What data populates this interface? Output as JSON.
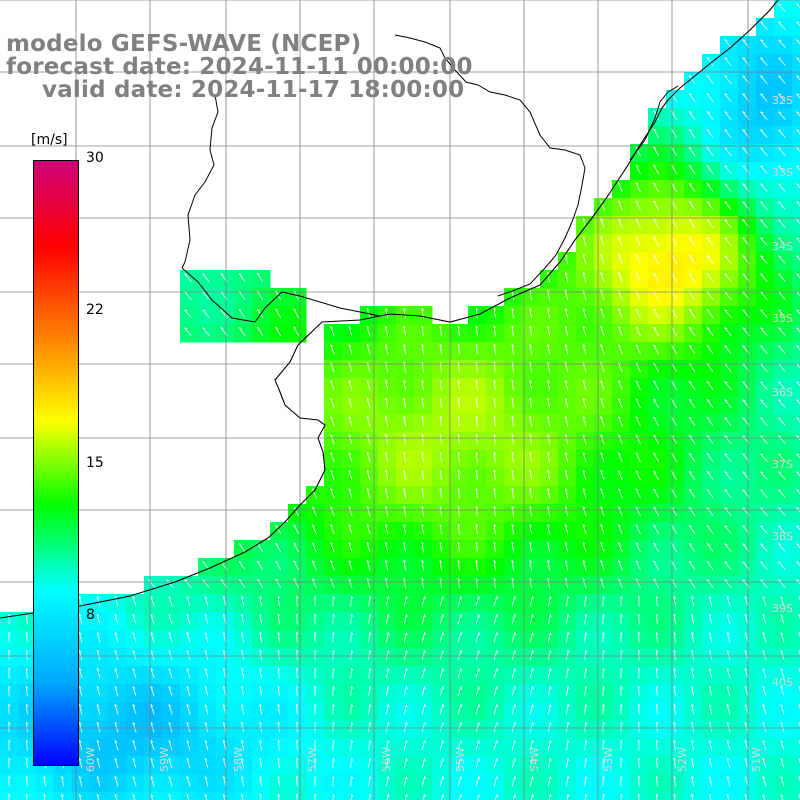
{
  "title": {
    "model": "modelo GEFS-WAVE (NCEP)",
    "forecast": "forecast date: 2024-11-11 00:00:00",
    "valid": "valid date: 2024-11-17 18:00:00"
  },
  "colorbar": {
    "unit": "[m/s]",
    "min": 0,
    "max": 30,
    "ticks": [
      "30",
      "22",
      "15",
      "8"
    ],
    "tick_values": [
      30,
      22,
      15,
      8
    ],
    "colors": [
      "#0000ff",
      "#00aaff",
      "#00ffff",
      "#00ff00",
      "#ffff00",
      "#ff8000",
      "#ff0000",
      "#cc0077"
    ]
  },
  "grid": {
    "lat_labels": [
      "32S",
      "33S",
      "34S",
      "35S",
      "36S",
      "37S",
      "38S",
      "39S",
      "40S"
    ],
    "lon_labels": [
      "60W",
      "59W",
      "58W",
      "57W",
      "56W",
      "55W",
      "54W",
      "53W",
      "52W",
      "51W"
    ]
  },
  "map": {
    "region": "Río de la Plata / Uruguay / southern Brazil coast",
    "field": "wind speed with direction arrows"
  }
}
